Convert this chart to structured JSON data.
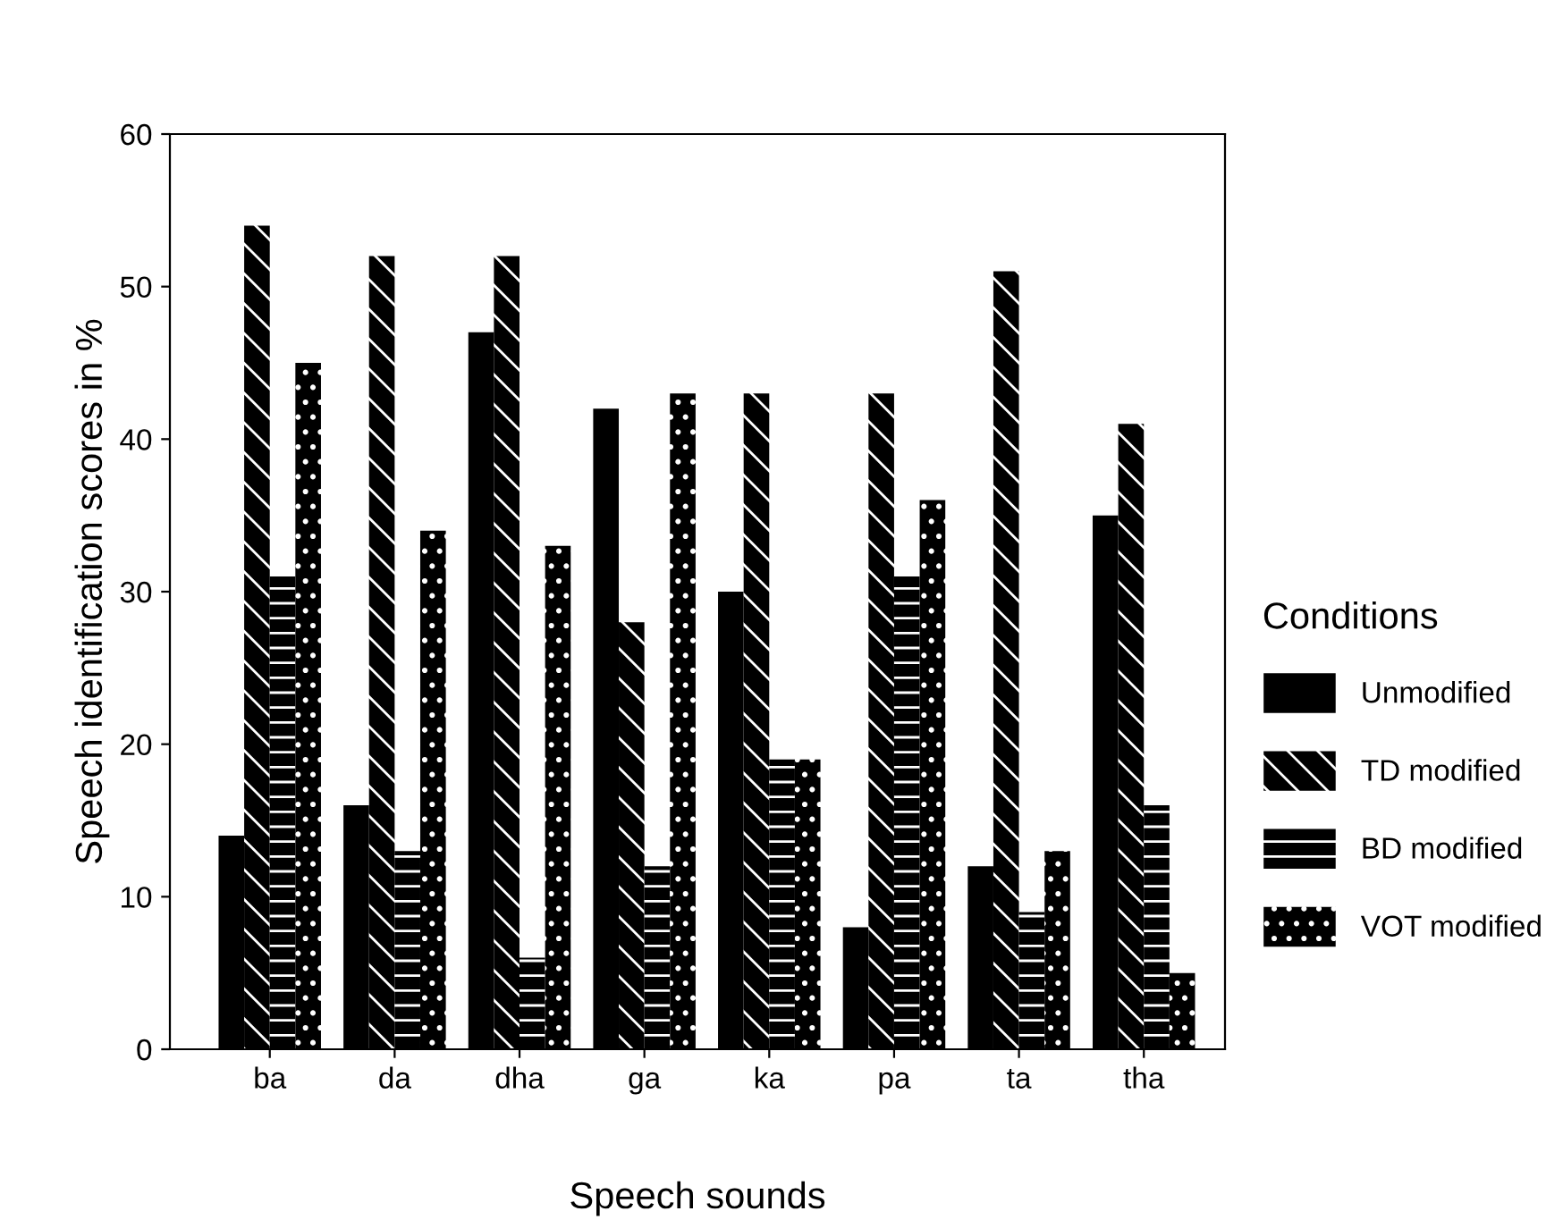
{
  "chart_data": {
    "type": "bar",
    "xlabel": "Speech sounds",
    "ylabel": "Speech identification scores in %",
    "legend_title": "Conditions",
    "legend": "right",
    "categories": [
      "ba",
      "da",
      "dha",
      "ga",
      "ka",
      "pa",
      "ta",
      "tha"
    ],
    "series": [
      {
        "name": "Unmodified",
        "color": "#000000",
        "values": [
          14,
          16,
          47,
          42,
          30,
          8,
          12,
          35
        ]
      },
      {
        "name": "TD modified",
        "color": "#000000",
        "values": [
          54,
          52,
          52,
          28,
          43,
          43,
          51,
          41
        ]
      },
      {
        "name": "BD modified",
        "color": "#000000",
        "values": [
          31,
          13,
          6,
          12,
          19,
          31,
          9,
          16
        ]
      },
      {
        "name": "VOT modified",
        "color": "#000000",
        "values": [
          45,
          34,
          33,
          43,
          19,
          36,
          13,
          5
        ]
      }
    ],
    "ylim": [
      0,
      60
    ],
    "yticks": [
      0,
      10,
      20,
      30,
      40,
      50,
      60
    ],
    "grid": false
  }
}
